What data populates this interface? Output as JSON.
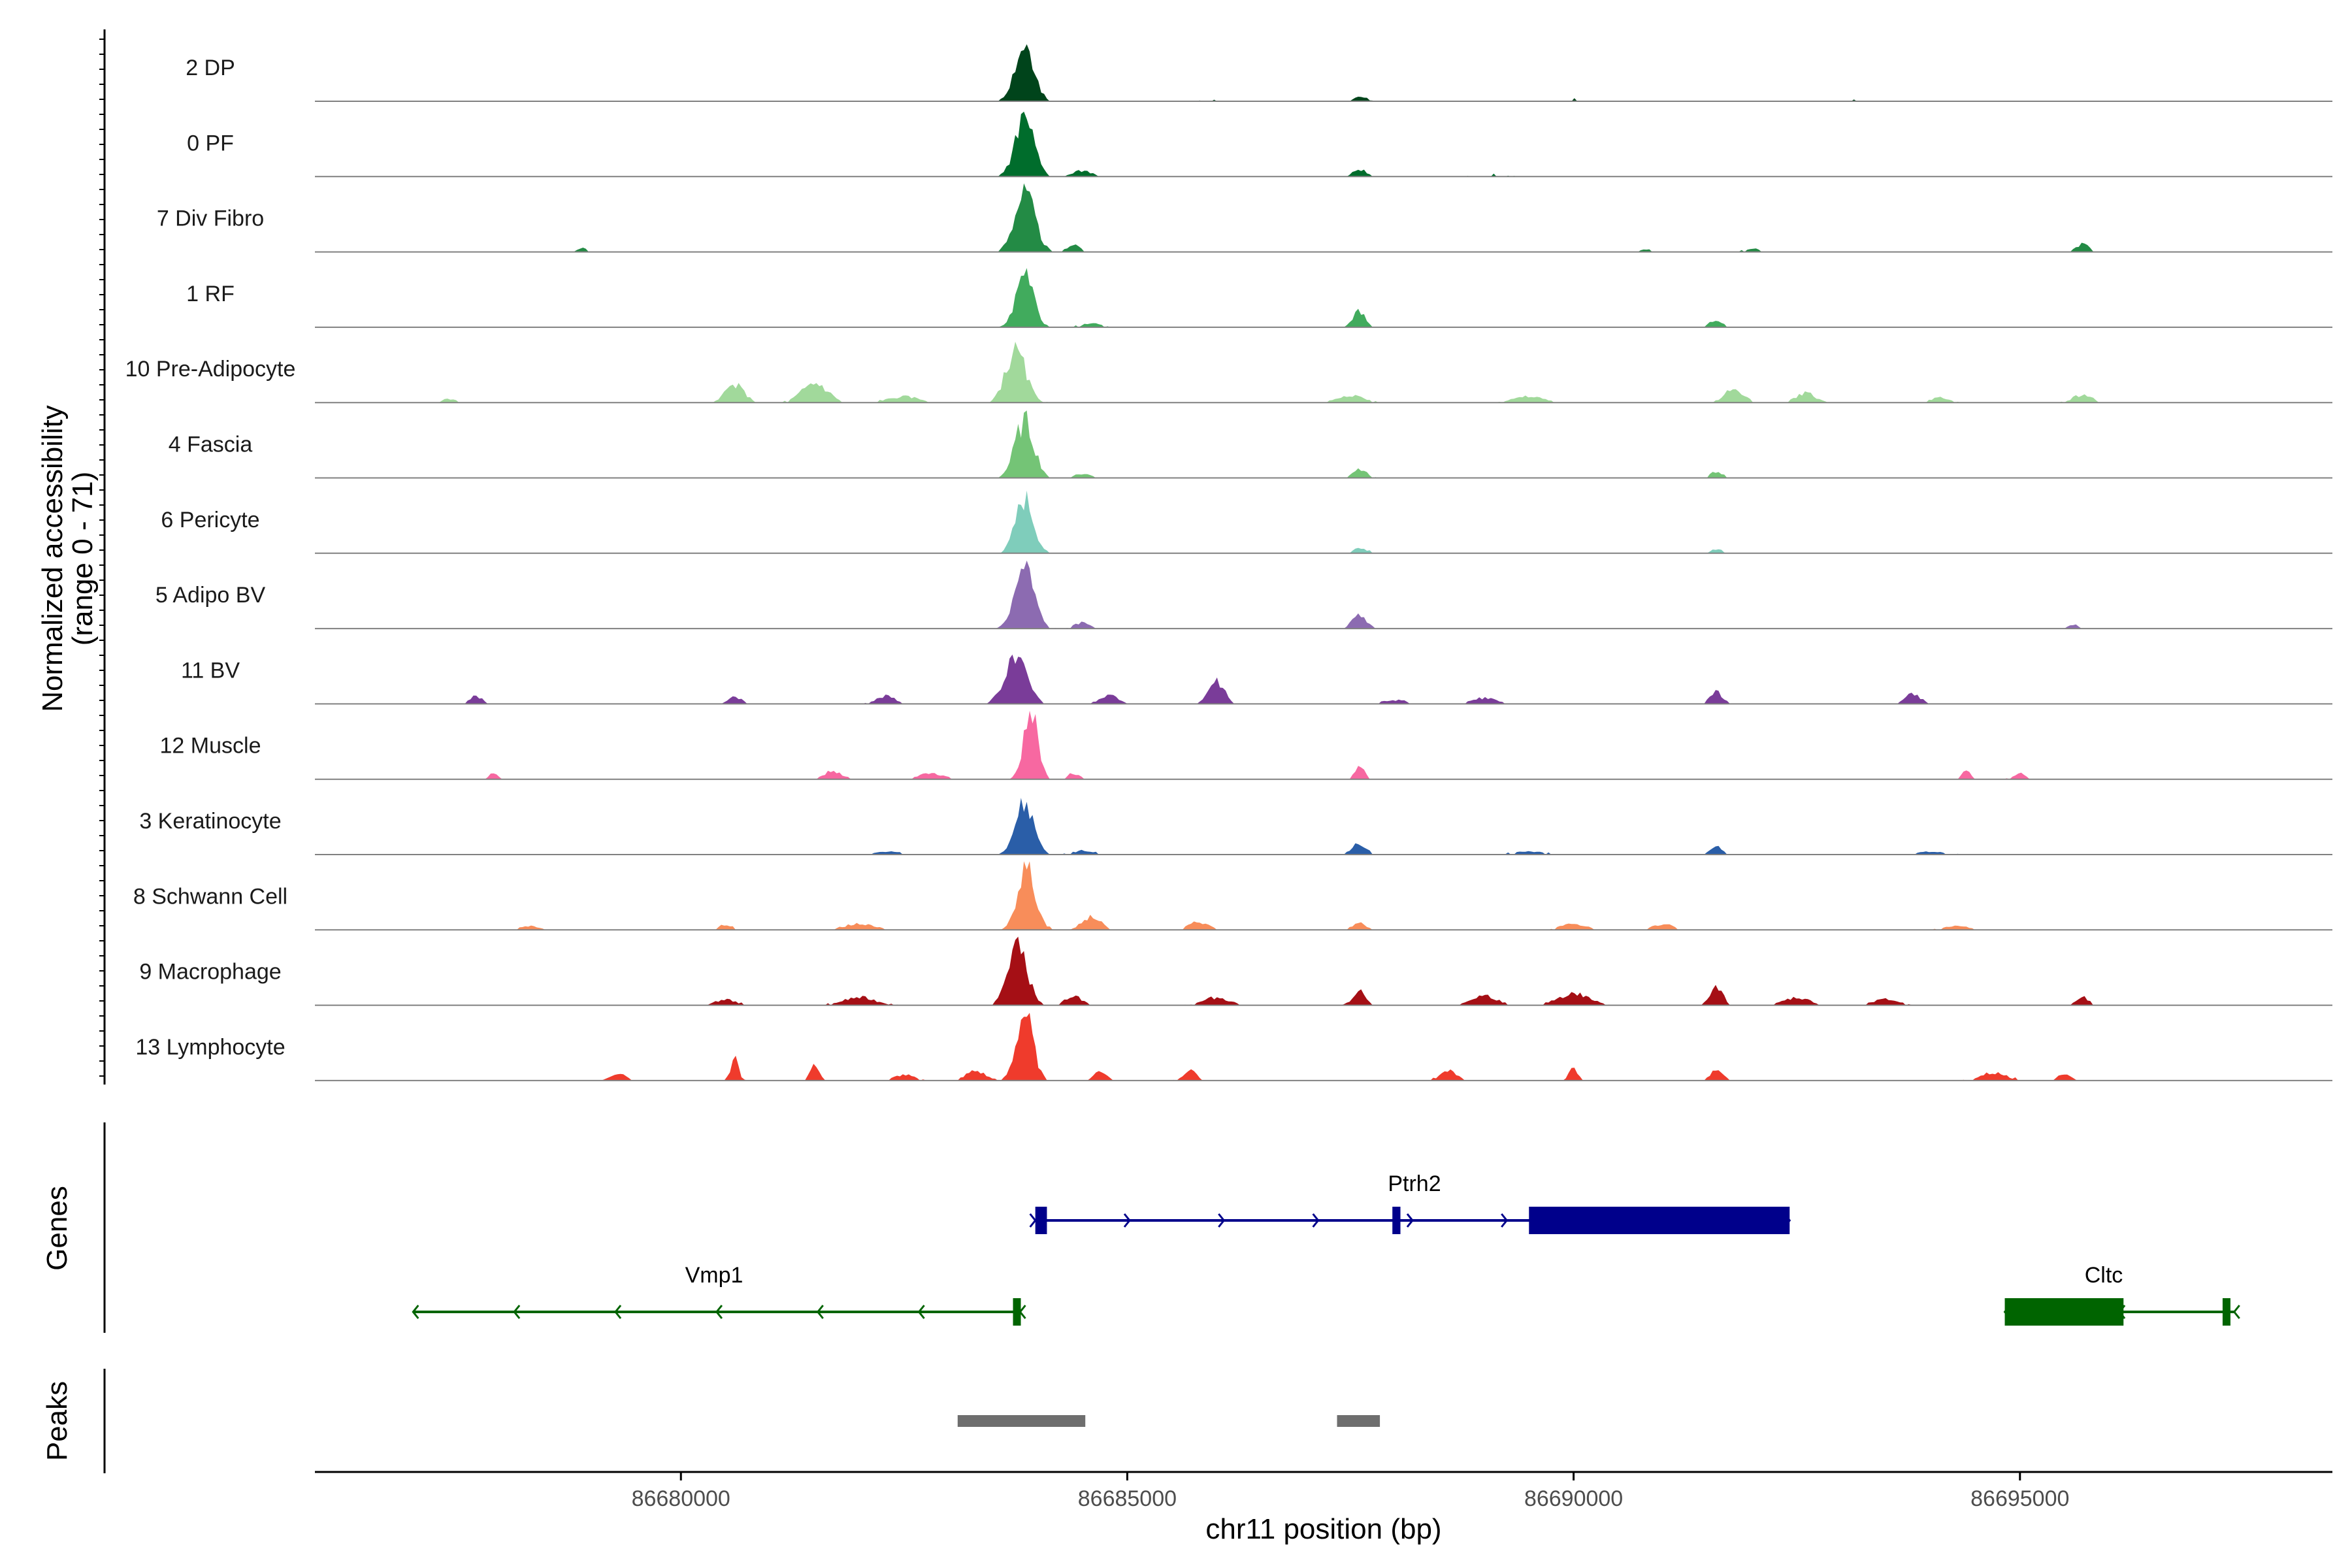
{
  "chart_data": {
    "type": "area",
    "chromosome": "chr11",
    "xlim": [
      86675900,
      86698500
    ],
    "ylim": [
      0,
      71
    ],
    "ylabel": "Normalized accessibility\n(range 0 - 71)",
    "xlabel": "chr11 position (bp)",
    "x_ticks": [
      86680000,
      86685000,
      86690000,
      86695000
    ],
    "x_tick_labels": [
      "86680000",
      "86685000",
      "86690000",
      "86695000"
    ],
    "baseline_color": "#808080",
    "tracks": [
      {
        "name": "2 DP",
        "color": "#00441b",
        "peaks": [
          [
            86683850,
            52,
            300
          ],
          [
            86687600,
            4,
            200
          ],
          [
            86686000,
            2,
            400
          ],
          [
            86690000,
            2,
            400
          ],
          [
            86693000,
            2,
            400
          ]
        ]
      },
      {
        "name": "0 PF",
        "color": "#006d2c",
        "peaks": [
          [
            86683850,
            58,
            300
          ],
          [
            86687600,
            8,
            200
          ],
          [
            86684500,
            6,
            300
          ],
          [
            86689000,
            2,
            500
          ]
        ]
      },
      {
        "name": "7 Div Fibro",
        "color": "#238b45",
        "peaks": [
          [
            86683850,
            60,
            320
          ],
          [
            86684400,
            8,
            200
          ],
          [
            86695700,
            8,
            200
          ],
          [
            86678900,
            4,
            150
          ],
          [
            86692000,
            4,
            200
          ],
          [
            86690800,
            3,
            200
          ]
        ]
      },
      {
        "name": "1 RF",
        "color": "#41ab5d",
        "peaks": [
          [
            86683850,
            52,
            280
          ],
          [
            86687600,
            16,
            200
          ],
          [
            86691600,
            8,
            200
          ],
          [
            86684600,
            4,
            300
          ]
        ]
      },
      {
        "name": "10 Pre-Adipocyte",
        "color": "#a1d99b",
        "peaks": [
          [
            86683750,
            52,
            320
          ],
          [
            86680600,
            18,
            300
          ],
          [
            86681500,
            20,
            400
          ],
          [
            86691800,
            14,
            300
          ],
          [
            86692600,
            10,
            300
          ],
          [
            86687500,
            8,
            400
          ],
          [
            86695700,
            8,
            300
          ],
          [
            86689500,
            6,
            500
          ],
          [
            86682500,
            6,
            500
          ],
          [
            86677400,
            4,
            200
          ],
          [
            86694100,
            5,
            300
          ]
        ]
      },
      {
        "name": "4 Fascia",
        "color": "#74c476",
        "peaks": [
          [
            86683850,
            58,
            300
          ],
          [
            86687600,
            10,
            220
          ],
          [
            86691600,
            6,
            200
          ],
          [
            86684500,
            4,
            300
          ]
        ]
      },
      {
        "name": "6 Pericyte",
        "color": "#7fcdbb",
        "peaks": [
          [
            86683850,
            56,
            280
          ],
          [
            86687600,
            6,
            200
          ],
          [
            86691600,
            4,
            200
          ]
        ]
      },
      {
        "name": "5 Adipo BV",
        "color": "#8c6bb1",
        "peaks": [
          [
            86683850,
            62,
            300
          ],
          [
            86687600,
            14,
            220
          ],
          [
            86695600,
            4,
            150
          ],
          [
            86684500,
            6,
            250
          ]
        ]
      },
      {
        "name": "11 BV",
        "color": "#7a3c99",
        "peaks": [
          [
            86683750,
            44,
            360
          ],
          [
            86686000,
            22,
            250
          ],
          [
            86691600,
            12,
            200
          ],
          [
            86693800,
            10,
            250
          ],
          [
            86677700,
            8,
            200
          ],
          [
            86680600,
            8,
            200
          ],
          [
            86682300,
            8,
            300
          ],
          [
            86689000,
            6,
            400
          ],
          [
            86688000,
            4,
            400
          ],
          [
            86684800,
            8,
            300
          ]
        ]
      },
      {
        "name": "12 Muscle",
        "color": "#f768a1",
        "peaks": [
          [
            86683920,
            70,
            220
          ],
          [
            86687600,
            14,
            150
          ],
          [
            86677900,
            8,
            120
          ],
          [
            86681700,
            8,
            300
          ],
          [
            86682800,
            6,
            400
          ],
          [
            86694400,
            8,
            150
          ],
          [
            86695000,
            6,
            200
          ],
          [
            86684400,
            6,
            200
          ]
        ]
      },
      {
        "name": "3 Keratinocyte",
        "color": "#2a5ea8",
        "peaks": [
          [
            86683850,
            52,
            300
          ],
          [
            86687600,
            12,
            220
          ],
          [
            86691600,
            8,
            200
          ],
          [
            86684500,
            4,
            300
          ],
          [
            86682300,
            3,
            500
          ],
          [
            86689500,
            3,
            500
          ],
          [
            86694000,
            3,
            500
          ]
        ]
      },
      {
        "name": "8 Schwann Cell",
        "color": "#f88d5a",
        "peaks": [
          [
            86683870,
            62,
            280
          ],
          [
            86684600,
            14,
            300
          ],
          [
            86685800,
            8,
            300
          ],
          [
            86687600,
            8,
            200
          ],
          [
            86690000,
            6,
            400
          ],
          [
            86691000,
            6,
            300
          ],
          [
            86682000,
            6,
            500
          ],
          [
            86678300,
            4,
            300
          ],
          [
            86680500,
            6,
            200
          ],
          [
            86694300,
            4,
            400
          ]
        ]
      },
      {
        "name": "9 Macrophage",
        "color": "#a50f15",
        "peaks": [
          [
            86683770,
            64,
            300
          ],
          [
            86684400,
            10,
            250
          ],
          [
            86687600,
            14,
            200
          ],
          [
            86691600,
            18,
            200
          ],
          [
            86690000,
            12,
            500
          ],
          [
            86689000,
            10,
            400
          ],
          [
            86692500,
            8,
            400
          ],
          [
            86686000,
            8,
            400
          ],
          [
            86682000,
            8,
            500
          ],
          [
            86680500,
            6,
            300
          ],
          [
            86695700,
            8,
            200
          ],
          [
            86693500,
            6,
            400
          ]
        ]
      },
      {
        "name": "13 Lymphocyte",
        "color": "#ef3b2c",
        "peaks": [
          [
            86683850,
            70,
            260
          ],
          [
            86680600,
            22,
            120
          ],
          [
            86681500,
            16,
            150
          ],
          [
            86684700,
            10,
            200
          ],
          [
            86685700,
            10,
            200
          ],
          [
            86688600,
            10,
            250
          ],
          [
            86690000,
            12,
            150
          ],
          [
            86691600,
            10,
            200
          ],
          [
            86683300,
            10,
            300
          ],
          [
            86694700,
            8,
            400
          ],
          [
            86695500,
            8,
            200
          ],
          [
            86679300,
            8,
            250
          ],
          [
            86682500,
            6,
            300
          ]
        ]
      }
    ],
    "genes": [
      {
        "name": "Ptrh2",
        "strand": "+",
        "color": "#00008b",
        "start": 86683970,
        "end": 86692420,
        "row": 1,
        "exons": [
          [
            86683970,
            86684100
          ],
          [
            86687970,
            86688060
          ]
        ],
        "cds": [
          [
            86689500,
            86692420
          ]
        ]
      },
      {
        "name": "Vmp1",
        "strand": "-",
        "color": "#006400",
        "start": 86677000,
        "end": 86683800,
        "row": 2,
        "exons": [
          [
            86683720,
            86683800
          ]
        ],
        "cds": []
      },
      {
        "name": "Cltc",
        "strand": "-",
        "color": "#006400",
        "start": 86694830,
        "end": 86697400,
        "row": 2,
        "exons": [
          [
            86697270,
            86697330
          ]
        ],
        "cds": [
          [
            86694830,
            86696160
          ]
        ]
      }
    ],
    "peak_regions": [
      [
        86683100,
        86684530
      ],
      [
        86687350,
        86687830
      ]
    ],
    "peak_color": "#6e6e6e",
    "side_labels": {
      "genes": "Genes",
      "peaks": "Peaks"
    }
  }
}
